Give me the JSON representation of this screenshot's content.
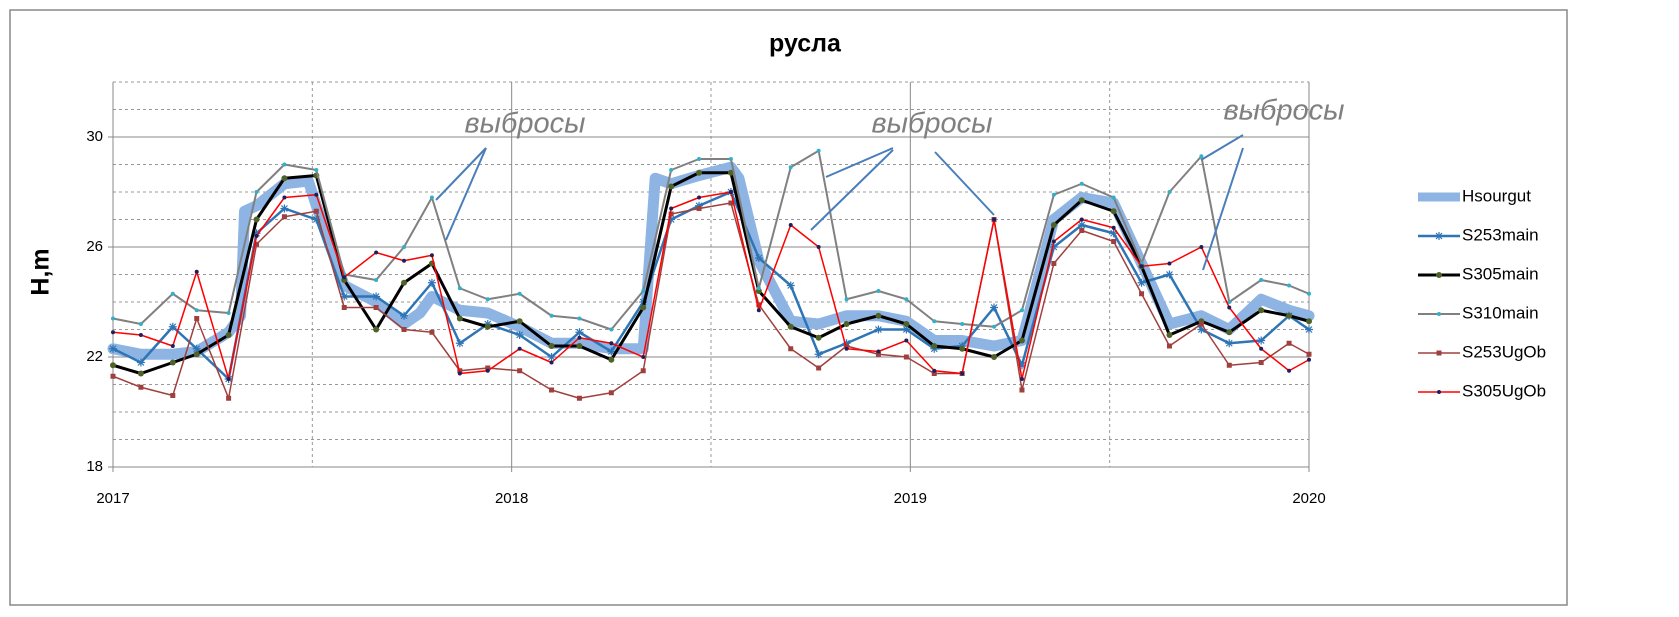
{
  "chart_data": {
    "type": "line",
    "title": "русла",
    "y_label": "H,m",
    "xlim": [
      2017,
      2020
    ],
    "xticks": [
      2017,
      2018,
      2019,
      2020
    ],
    "ylim": [
      18,
      32
    ],
    "yticks": [
      18,
      22,
      26,
      30
    ],
    "grid": true,
    "legend": "right",
    "annotations": [
      "выбросы",
      "выбросы",
      "выбросы"
    ],
    "series": [
      {
        "name": "Hsourgut",
        "color": "#8eb4e3",
        "x": [
          2017.0,
          2017.07,
          2017.15,
          2017.21,
          2017.29,
          2017.32,
          2017.33,
          2017.36,
          2017.43,
          2017.49,
          2017.51,
          2017.58,
          2017.66,
          2017.73,
          2017.77,
          2017.8,
          2017.87,
          2017.94,
          2018.02,
          2018.1,
          2018.17,
          2018.25,
          2018.33,
          2018.36,
          2018.4,
          2018.47,
          2018.55,
          2018.57,
          2018.62,
          2018.7,
          2018.77,
          2018.84,
          2018.92,
          2018.99,
          2019.06,
          2019.13,
          2019.21,
          2019.28,
          2019.36,
          2019.43,
          2019.51,
          2019.58,
          2019.65,
          2019.73,
          2019.8,
          2019.88,
          2019.95,
          2020.0
        ],
        "values": [
          22.3,
          22.1,
          22.1,
          22.2,
          22.9,
          23.5,
          27.3,
          27.5,
          28.3,
          28.4,
          27.5,
          24.6,
          24.0,
          23.2,
          23.6,
          24.2,
          23.7,
          23.6,
          23.1,
          22.5,
          22.5,
          22.3,
          22.3,
          28.5,
          28.3,
          28.6,
          28.9,
          28.5,
          25.5,
          23.3,
          23.2,
          23.5,
          23.5,
          23.3,
          22.6,
          22.6,
          22.4,
          22.6,
          27.0,
          27.8,
          27.6,
          25.4,
          23.2,
          23.5,
          23.0,
          24.1,
          23.7,
          23.5
        ]
      },
      {
        "name": "S253main",
        "color": "#2e75b6",
        "x": [
          2017.0,
          2017.07,
          2017.15,
          2017.21,
          2017.29,
          2017.36,
          2017.43,
          2017.51,
          2017.58,
          2017.66,
          2017.73,
          2017.8,
          2017.87,
          2017.94,
          2018.02,
          2018.1,
          2018.17,
          2018.25,
          2018.33,
          2018.4,
          2018.47,
          2018.55,
          2018.62,
          2018.7,
          2018.77,
          2018.84,
          2018.92,
          2018.99,
          2019.06,
          2019.13,
          2019.21,
          2019.28,
          2019.36,
          2019.43,
          2019.51,
          2019.58,
          2019.65,
          2019.73,
          2019.8,
          2019.88,
          2019.95,
          2020.0
        ],
        "values": [
          22.3,
          21.8,
          23.1,
          22.3,
          21.2,
          26.5,
          27.4,
          27.0,
          24.2,
          24.2,
          23.5,
          24.7,
          22.5,
          23.2,
          22.8,
          22.0,
          22.9,
          22.2,
          24.0,
          27.0,
          27.5,
          28.0,
          25.6,
          24.6,
          22.1,
          22.5,
          23.0,
          23.0,
          22.3,
          22.4,
          23.8,
          21.7,
          26.0,
          26.8,
          26.5,
          24.7,
          25.0,
          23.0,
          22.5,
          22.6,
          23.5,
          23.0
        ]
      },
      {
        "name": "S305main",
        "color": "#000000",
        "x": [
          2017.0,
          2017.07,
          2017.15,
          2017.21,
          2017.29,
          2017.36,
          2017.43,
          2017.51,
          2017.58,
          2017.66,
          2017.73,
          2017.8,
          2017.87,
          2017.94,
          2018.02,
          2018.1,
          2018.17,
          2018.25,
          2018.33,
          2018.4,
          2018.47,
          2018.55,
          2018.62,
          2018.7,
          2018.77,
          2018.84,
          2018.92,
          2018.99,
          2019.06,
          2019.13,
          2019.21,
          2019.28,
          2019.36,
          2019.43,
          2019.51,
          2019.58,
          2019.65,
          2019.73,
          2019.8,
          2019.88,
          2019.95,
          2020.0
        ],
        "values": [
          21.7,
          21.4,
          21.8,
          22.1,
          22.8,
          27.0,
          28.5,
          28.6,
          24.8,
          23.0,
          24.7,
          25.4,
          23.4,
          23.1,
          23.3,
          22.4,
          22.4,
          21.9,
          23.8,
          28.2,
          28.7,
          28.7,
          24.4,
          23.1,
          22.7,
          23.2,
          23.5,
          23.2,
          22.4,
          22.3,
          22.0,
          22.6,
          26.8,
          27.7,
          27.3,
          25.3,
          22.8,
          23.3,
          22.9,
          23.7,
          23.5,
          23.3
        ]
      },
      {
        "name": "S310main",
        "color": "#808080",
        "x": [
          2017.0,
          2017.07,
          2017.15,
          2017.21,
          2017.29,
          2017.36,
          2017.43,
          2017.51,
          2017.58,
          2017.66,
          2017.73,
          2017.8,
          2017.87,
          2017.94,
          2018.02,
          2018.1,
          2018.17,
          2018.25,
          2018.33,
          2018.4,
          2018.47,
          2018.55,
          2018.62,
          2018.7,
          2018.77,
          2018.84,
          2018.92,
          2018.99,
          2019.06,
          2019.13,
          2019.21,
          2019.28,
          2019.36,
          2019.43,
          2019.51,
          2019.58,
          2019.65,
          2019.73,
          2019.8,
          2019.88,
          2019.95,
          2020.0
        ],
        "values": [
          23.4,
          23.2,
          24.3,
          23.7,
          23.6,
          28.0,
          29.0,
          28.8,
          25.0,
          24.8,
          26.0,
          27.8,
          24.5,
          24.1,
          24.3,
          23.5,
          23.4,
          23.0,
          24.4,
          28.8,
          29.2,
          29.2,
          24.5,
          28.9,
          29.5,
          24.1,
          24.4,
          24.1,
          23.3,
          23.2,
          23.1,
          23.7,
          27.9,
          28.3,
          27.8,
          25.4,
          28.0,
          29.3,
          24.0,
          24.8,
          24.6,
          24.3
        ]
      },
      {
        "name": "S253UgOb",
        "color": "#a0403e",
        "x": [
          2017.0,
          2017.07,
          2017.15,
          2017.21,
          2017.29,
          2017.36,
          2017.43,
          2017.51,
          2017.58,
          2017.66,
          2017.73,
          2017.8,
          2017.87,
          2017.94,
          2018.02,
          2018.1,
          2018.17,
          2018.25,
          2018.33,
          2018.4,
          2018.47,
          2018.55,
          2018.62,
          2018.7,
          2018.77,
          2018.84,
          2018.92,
          2018.99,
          2019.06,
          2019.13,
          2019.21,
          2019.28,
          2019.36,
          2019.43,
          2019.51,
          2019.58,
          2019.65,
          2019.73,
          2019.8,
          2019.88,
          2019.95,
          2020.0
        ],
        "values": [
          21.3,
          20.9,
          20.6,
          23.4,
          20.5,
          26.1,
          27.1,
          27.3,
          23.8,
          23.8,
          23.0,
          22.9,
          21.5,
          21.6,
          21.5,
          20.8,
          20.5,
          20.7,
          21.5,
          27.2,
          27.4,
          27.6,
          23.9,
          22.3,
          21.6,
          22.4,
          22.1,
          22.0,
          21.4,
          21.4,
          27.0,
          20.8,
          25.4,
          26.6,
          26.2,
          24.3,
          22.4,
          23.2,
          21.7,
          21.8,
          22.5,
          22.1
        ]
      },
      {
        "name": "S305UgOb",
        "color": "#ff0000",
        "x": [
          2017.0,
          2017.07,
          2017.15,
          2017.21,
          2017.29,
          2017.36,
          2017.43,
          2017.51,
          2017.58,
          2017.66,
          2017.73,
          2017.8,
          2017.87,
          2017.94,
          2018.02,
          2018.1,
          2018.17,
          2018.25,
          2018.33,
          2018.4,
          2018.47,
          2018.55,
          2018.62,
          2018.7,
          2018.77,
          2018.84,
          2018.92,
          2018.99,
          2019.06,
          2019.13,
          2019.21,
          2019.28,
          2019.36,
          2019.43,
          2019.51,
          2019.58,
          2019.65,
          2019.73,
          2019.8,
          2019.88,
          2019.95,
          2020.0
        ],
        "values": [
          22.9,
          22.8,
          22.4,
          25.1,
          21.2,
          26.4,
          27.8,
          27.9,
          24.9,
          25.8,
          25.5,
          25.7,
          21.4,
          21.5,
          22.3,
          21.8,
          22.7,
          22.5,
          22.0,
          27.4,
          27.8,
          28.0,
          23.7,
          26.8,
          26.0,
          22.3,
          22.2,
          22.6,
          21.5,
          21.4,
          27.0,
          21.2,
          26.2,
          27.0,
          26.7,
          25.3,
          25.4,
          26.0,
          23.8,
          22.3,
          21.5,
          21.9
        ]
      }
    ]
  }
}
